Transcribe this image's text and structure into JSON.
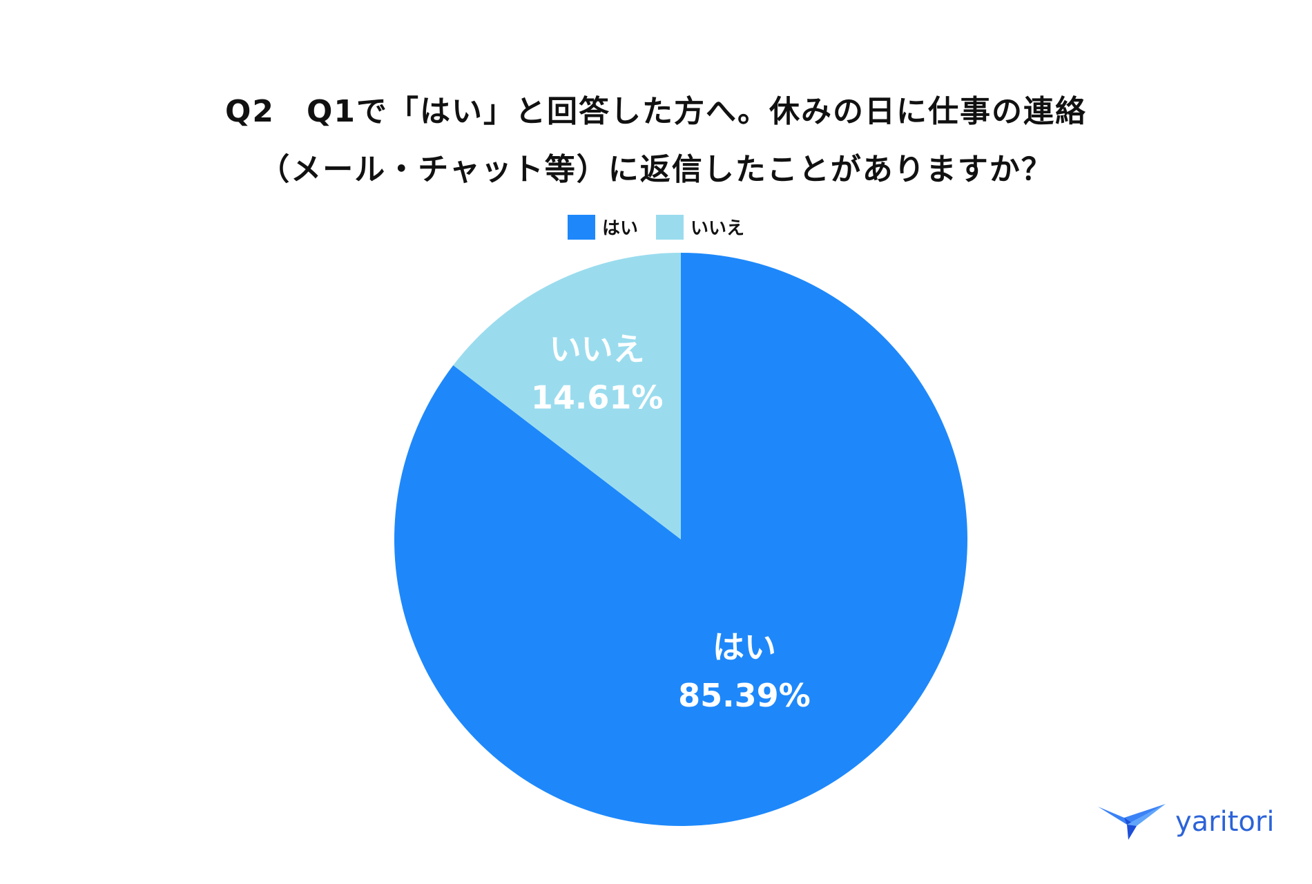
{
  "title": {
    "line1": "Q2　Q1で「はい」と回答した方へ。休みの日に仕事の連絡",
    "line2": "（メール・チャット等）に返信したことがありますか？"
  },
  "legend": [
    {
      "label": "はい",
      "color": "#1e88fa"
    },
    {
      "label": "いいえ",
      "color": "#9adcee"
    }
  ],
  "chart_data": {
    "type": "pie",
    "title": "Q2　Q1で「はい」と回答した方へ。休みの日に仕事の連絡（メール・チャット等）に返信したことがありますか？",
    "legend_position": "top-center",
    "slices": [
      {
        "label": "はい",
        "value": 85.39,
        "value_label": "85.39%",
        "color": "#1e88fa"
      },
      {
        "label": "いいえ",
        "value": 14.61,
        "value_label": "14.61%",
        "color": "#9adcee"
      }
    ]
  },
  "logo": {
    "text": "yaritori",
    "icon": "paper-plane-check-icon",
    "color": "#2b63d9"
  }
}
